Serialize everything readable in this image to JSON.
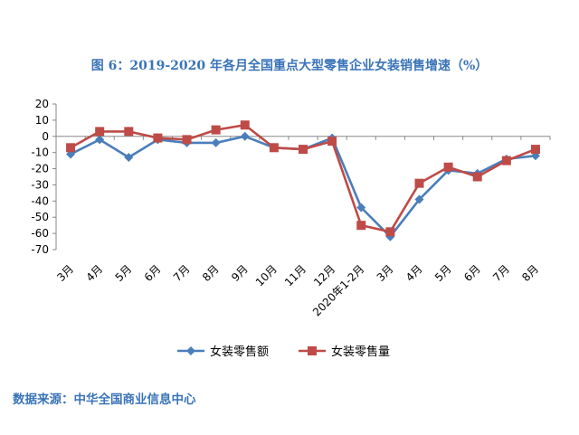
{
  "title": "图 6：2019-2020 年各月全国重点大型零售企业女装销售增速（%）",
  "source": "数据来源：中华全国商业信息中心",
  "chart_data": {
    "type": "line",
    "categories": [
      "3月",
      "4月",
      "5月",
      "6月",
      "7月",
      "8月",
      "9月",
      "10月",
      "11月",
      "12月",
      "2020年1-2月",
      "3月",
      "4月",
      "5月",
      "6月",
      "7月",
      "8月"
    ],
    "y_ticks": [
      20,
      10,
      0,
      -10,
      -20,
      -30,
      -40,
      -50,
      -60,
      -70
    ],
    "ylim": [
      -70,
      20
    ],
    "legend_position": "bottom",
    "grid": false,
    "series": [
      {
        "name": "女装零售额",
        "color": "#4a7ebb",
        "marker": "diamond",
        "values": [
          -11,
          -2,
          -13,
          -2,
          -4,
          -4,
          0,
          -7,
          -8,
          -1,
          -44,
          -62,
          -39,
          -21,
          -23,
          -14,
          -12
        ]
      },
      {
        "name": "女装零售量",
        "color": "#be4b48",
        "marker": "square",
        "values": [
          -7,
          3,
          3,
          -1,
          -2,
          4,
          7,
          -7,
          -8,
          -3,
          -55,
          -59,
          -29,
          -19,
          -25,
          -15,
          -8
        ]
      }
    ]
  }
}
